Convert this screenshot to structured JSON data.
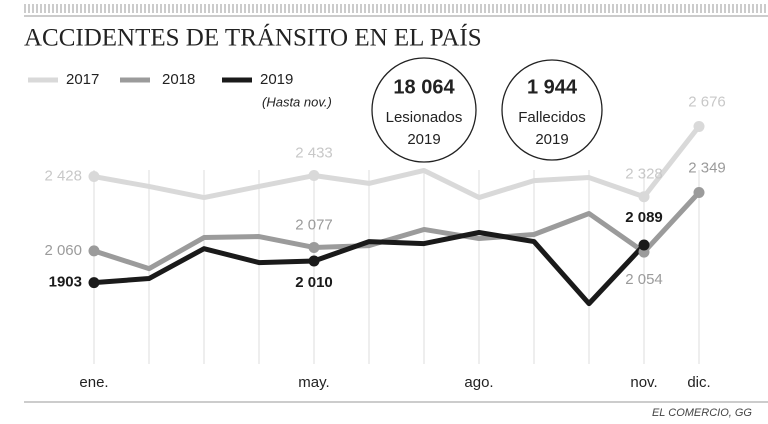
{
  "chart_data": {
    "type": "line",
    "title": "ACCIDENTES DE TRÁNSITO EN EL PAÍS",
    "categories": [
      "ene.",
      null,
      null,
      null,
      "may.",
      null,
      null,
      "ago.",
      null,
      null,
      "nov.",
      "dic."
    ],
    "series": [
      {
        "name": "2017",
        "color": "#d9d9d9",
        "values": [
          2428,
          2379,
          2324,
          2379,
          2433,
          2394,
          2458,
          2324,
          2408,
          2423,
          2328,
          2676
        ],
        "value_labels": [
          "2 428",
          null,
          null,
          null,
          "2 433",
          null,
          null,
          null,
          null,
          null,
          "2 328",
          "2 676"
        ]
      },
      {
        "name": "2018",
        "color": "#9b9b9b",
        "values": [
          2060,
          1972,
          2126,
          2131,
          2077,
          2086,
          2166,
          2121,
          2141,
          2245,
          2054,
          2349
        ],
        "value_labels": [
          "2 060",
          null,
          null,
          null,
          "2 077",
          null,
          null,
          null,
          null,
          null,
          "2 054",
          "2 349"
        ]
      },
      {
        "name": "2019",
        "color": "#1a1a1a",
        "note": "(Hasta nov.)",
        "values": [
          1903,
          1923,
          2071,
          2002,
          2010,
          2106,
          2096,
          2151,
          2106,
          1799,
          2089,
          null
        ],
        "value_labels": [
          "1903",
          null,
          null,
          null,
          "2 010",
          null,
          null,
          null,
          null,
          null,
          "2 089",
          null
        ]
      }
    ],
    "ylim": [
      1500,
      3000
    ],
    "callouts": [
      {
        "value": "18 064",
        "lines": [
          "Lesionados",
          "2019"
        ]
      },
      {
        "value": "1 944",
        "lines": [
          "Fallecidos",
          "2019"
        ]
      }
    ],
    "source": "EL COMERCIO, GG"
  }
}
